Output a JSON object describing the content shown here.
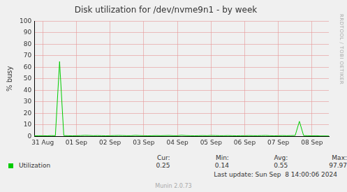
{
  "chart_data": {
    "type": "line",
    "title": "Disk utilization for /dev/nvme9n1 - by week",
    "y_label": "% busy",
    "categories": [
      null,
      null,
      "31 Aug",
      null,
      null,
      null,
      null,
      null,
      null,
      null,
      "01 Sep",
      null,
      null,
      null,
      null,
      null,
      null,
      null,
      "02 Sep",
      null,
      null,
      null,
      null,
      null,
      null,
      null,
      "03 Sep",
      null,
      null,
      null,
      null,
      null,
      null,
      null,
      "04 Sep",
      null,
      null,
      null,
      null,
      null,
      null,
      null,
      "05 Sep",
      null,
      null,
      null,
      null,
      null,
      null,
      null,
      "06 Sep",
      null,
      null,
      null,
      null,
      null,
      null,
      null,
      "07 Sep",
      null,
      null,
      null,
      null,
      null,
      null,
      null,
      "08 Sep",
      null,
      null,
      null,
      null
    ],
    "series": [
      {
        "name": "Utilization",
        "color": "#00cc00",
        "values": [
          0.4,
          0.5,
          0.5,
          0.4,
          0.6,
          0.5,
          65,
          0.6,
          0.5,
          0.4,
          0.5,
          0.6,
          0.8,
          0.7,
          0.5,
          0.6,
          0.5,
          0.4,
          0.5,
          0.6,
          0.7,
          0.6,
          0.5,
          0.5,
          0.8,
          0.6,
          0.5,
          0.4,
          0.5,
          0.6,
          0.5,
          0.6,
          0.7,
          0.5,
          0.5,
          0.9,
          0.6,
          0.5,
          0.4,
          0.5,
          0.6,
          0.5,
          0.7,
          0.6,
          0.5,
          0.5,
          0.6,
          0.5,
          0.4,
          0.5,
          0.5,
          0.6,
          0.5,
          0.5,
          0.6,
          0.7,
          0.5,
          0.4,
          0.5,
          0.6,
          0.5,
          0.6,
          0.7,
          13,
          0.6,
          0.5,
          0.4,
          0.5,
          0.3,
          0.3,
          0.25
        ],
        "stats": [
          0.25,
          0.14,
          0.55,
          97.97
        ]
      }
    ],
    "stats_labels": [
      "Cur:",
      "Min:",
      "Avg:",
      "Max:"
    ],
    "ylim": [
      0,
      100
    ],
    "yticks": [
      0,
      10,
      20,
      30,
      40,
      50,
      60,
      70,
      80,
      90,
      100
    ],
    "grid": true,
    "legend": "bottom",
    "last_update": "Last update: Sun Sep  8 14:00:06 2024",
    "footer": "Munin 2.0.73",
    "side_text": "RRDTOOL / TOBI OETIKER"
  }
}
